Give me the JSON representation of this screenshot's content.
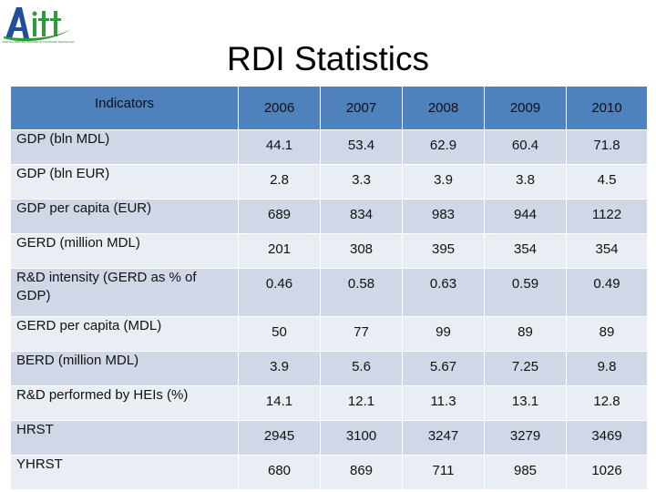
{
  "header": {
    "logo_text": "Aitt",
    "logo_tagline": "AGENȚIA PENTRU INOVARE ȘI TRANSFER TEHNOLOGIC",
    "title": "RDI Statistics"
  },
  "table": {
    "columns": [
      "Indicators",
      "2006",
      "2007",
      "2008",
      "2009",
      "2010"
    ],
    "rows": [
      {
        "label": "GDP (bln MDL)",
        "values": [
          "44.1",
          "53.4",
          "62.9",
          "60.4",
          "71.8"
        ]
      },
      {
        "label": "GDP (bln EUR)",
        "values": [
          "2.8",
          "3.3",
          "3.9",
          "3.8",
          "4.5"
        ]
      },
      {
        "label": "GDP per capita (EUR)",
        "values": [
          "689",
          "834",
          "983",
          "944",
          "1122"
        ]
      },
      {
        "label": "GERD (million MDL)",
        "values": [
          "201",
          "308",
          "395",
          "354",
          "354"
        ]
      },
      {
        "label": "R&D intensity (GERD as % of GDP)",
        "values": [
          "0.46",
          "0.58",
          "0.63",
          "0.59",
          "0.49"
        ]
      },
      {
        "label": "GERD per capita (MDL)",
        "values": [
          "50",
          "77",
          "99",
          "89",
          "89"
        ]
      },
      {
        "label": "BERD (million MDL)",
        "values": [
          "3.9",
          "5.6",
          "5.67",
          "7.25",
          "9.8"
        ]
      },
      {
        "label": "R&D performed by HEIs (%)",
        "values": [
          "14.1",
          "12.1",
          "11.3",
          "13.1",
          "12.8"
        ]
      },
      {
        "label": "HRST",
        "values": [
          "2945",
          "3100",
          "3247",
          "3279",
          "3469"
        ]
      },
      {
        "label": "YHRST",
        "values": [
          "680",
          "869",
          "711",
          "985",
          "1026"
        ]
      }
    ]
  },
  "colors": {
    "header_fill": "#4f81bd",
    "row_dark": "#d0d8e8",
    "row_light": "#e9edf4",
    "logo_blue": "#1f4e9a",
    "logo_green": "#2e9b3a"
  }
}
